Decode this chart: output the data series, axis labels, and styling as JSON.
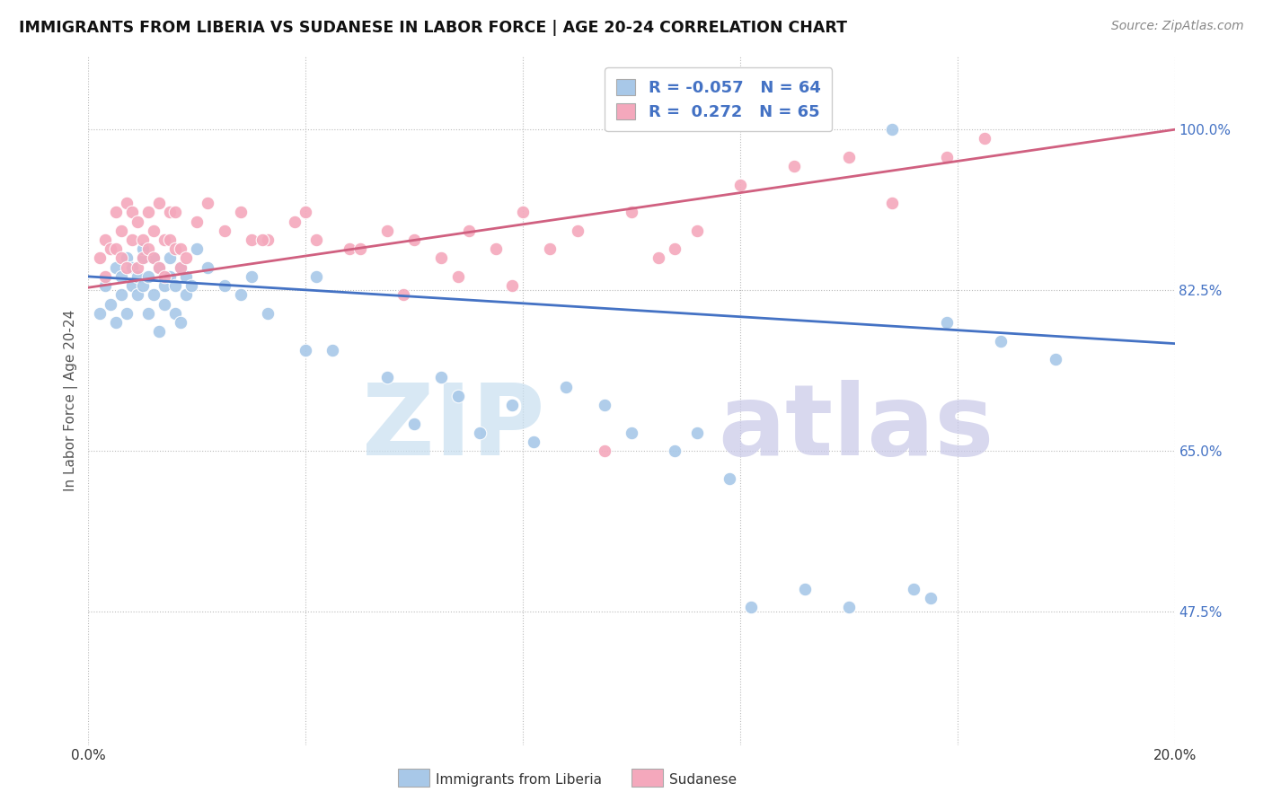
{
  "title": "IMMIGRANTS FROM LIBERIA VS SUDANESE IN LABOR FORCE | AGE 20-24 CORRELATION CHART",
  "source": "Source: ZipAtlas.com",
  "ylabel": "In Labor Force | Age 20-24",
  "xlim": [
    0.0,
    0.2
  ],
  "ylim": [
    0.33,
    1.08
  ],
  "x_ticks": [
    0.0,
    0.04,
    0.08,
    0.12,
    0.16,
    0.2
  ],
  "y_ticks": [
    0.475,
    0.65,
    0.825,
    1.0
  ],
  "y_tick_labels": [
    "47.5%",
    "65.0%",
    "82.5%",
    "100.0%"
  ],
  "legend_blue_R": "-0.057",
  "legend_blue_N": "64",
  "legend_pink_R": "0.272",
  "legend_pink_N": "65",
  "blue_color": "#a8c8e8",
  "pink_color": "#f4a8bc",
  "blue_line_color": "#4472c4",
  "pink_line_color": "#d06080",
  "blue_scatter_x": [
    0.002,
    0.003,
    0.004,
    0.005,
    0.005,
    0.006,
    0.006,
    0.007,
    0.007,
    0.008,
    0.008,
    0.009,
    0.009,
    0.01,
    0.01,
    0.01,
    0.011,
    0.011,
    0.012,
    0.012,
    0.013,
    0.013,
    0.014,
    0.014,
    0.015,
    0.015,
    0.016,
    0.016,
    0.017,
    0.017,
    0.018,
    0.018,
    0.019,
    0.02,
    0.022,
    0.025,
    0.028,
    0.03,
    0.033,
    0.04,
    0.042,
    0.045,
    0.055,
    0.06,
    0.065,
    0.068,
    0.072,
    0.078,
    0.082,
    0.088,
    0.095,
    0.1,
    0.108,
    0.112,
    0.118,
    0.122,
    0.132,
    0.14,
    0.152,
    0.158,
    0.168,
    0.178,
    0.148,
    0.155
  ],
  "blue_scatter_y": [
    0.8,
    0.83,
    0.81,
    0.85,
    0.79,
    0.84,
    0.82,
    0.86,
    0.8,
    0.85,
    0.83,
    0.82,
    0.84,
    0.86,
    0.83,
    0.87,
    0.84,
    0.8,
    0.86,
    0.82,
    0.85,
    0.78,
    0.83,
    0.81,
    0.84,
    0.86,
    0.83,
    0.8,
    0.79,
    0.85,
    0.82,
    0.84,
    0.83,
    0.87,
    0.85,
    0.83,
    0.82,
    0.84,
    0.8,
    0.76,
    0.84,
    0.76,
    0.73,
    0.68,
    0.73,
    0.71,
    0.67,
    0.7,
    0.66,
    0.72,
    0.7,
    0.67,
    0.65,
    0.67,
    0.62,
    0.48,
    0.5,
    0.48,
    0.5,
    0.79,
    0.77,
    0.75,
    1.0,
    0.49
  ],
  "pink_scatter_x": [
    0.002,
    0.003,
    0.003,
    0.004,
    0.005,
    0.005,
    0.006,
    0.006,
    0.007,
    0.007,
    0.008,
    0.008,
    0.009,
    0.009,
    0.01,
    0.01,
    0.011,
    0.011,
    0.012,
    0.012,
    0.013,
    0.013,
    0.014,
    0.014,
    0.015,
    0.015,
    0.016,
    0.016,
    0.017,
    0.017,
    0.018,
    0.02,
    0.022,
    0.025,
    0.028,
    0.03,
    0.033,
    0.04,
    0.048,
    0.055,
    0.06,
    0.065,
    0.07,
    0.075,
    0.08,
    0.09,
    0.1,
    0.108,
    0.112,
    0.12,
    0.13,
    0.14,
    0.148,
    0.158,
    0.165,
    0.032,
    0.038,
    0.042,
    0.05,
    0.058,
    0.068,
    0.078,
    0.085,
    0.095,
    0.105
  ],
  "pink_scatter_y": [
    0.86,
    0.88,
    0.84,
    0.87,
    0.91,
    0.87,
    0.89,
    0.86,
    0.92,
    0.85,
    0.88,
    0.91,
    0.85,
    0.9,
    0.88,
    0.86,
    0.87,
    0.91,
    0.86,
    0.89,
    0.85,
    0.92,
    0.84,
    0.88,
    0.91,
    0.88,
    0.87,
    0.91,
    0.85,
    0.87,
    0.86,
    0.9,
    0.92,
    0.89,
    0.91,
    0.88,
    0.88,
    0.91,
    0.87,
    0.89,
    0.88,
    0.86,
    0.89,
    0.87,
    0.91,
    0.89,
    0.91,
    0.87,
    0.89,
    0.94,
    0.96,
    0.97,
    0.92,
    0.97,
    0.99,
    0.88,
    0.9,
    0.88,
    0.87,
    0.82,
    0.84,
    0.83,
    0.87,
    0.65,
    0.86
  ],
  "blue_line_x": [
    0.0,
    0.2
  ],
  "blue_line_y": [
    0.84,
    0.767
  ],
  "pink_line_x": [
    0.0,
    0.2
  ],
  "pink_line_y": [
    0.828,
    1.0
  ]
}
